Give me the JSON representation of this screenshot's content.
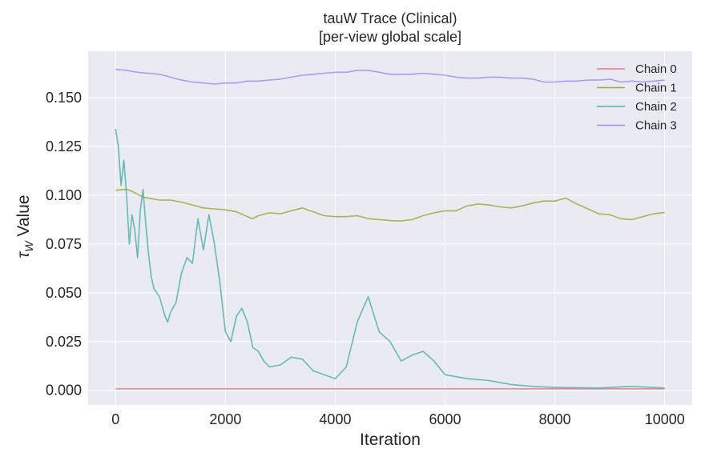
{
  "chart_data": {
    "type": "line",
    "title": "tauW Trace (Clinical)",
    "subtitle": "[per-view global scale]",
    "xlabel": "Iteration",
    "ylabel_symbol": "τ",
    "ylabel_subscript": "W",
    "ylabel_rest": " Value",
    "xlim": [
      -500,
      10500
    ],
    "ylim": [
      -0.0075,
      0.1738
    ],
    "xticks": [
      0,
      2000,
      4000,
      6000,
      8000,
      10000
    ],
    "xtick_labels": [
      "0",
      "2000",
      "4000",
      "6000",
      "8000",
      "10000"
    ],
    "yticks": [
      0.0,
      0.025,
      0.05,
      0.075,
      0.1,
      0.125,
      0.15
    ],
    "ytick_labels": [
      "0.000",
      "0.025",
      "0.050",
      "0.075",
      "0.100",
      "0.125",
      "0.150"
    ],
    "grid": true,
    "legend_position": "top-right",
    "background": "#eaeaf2",
    "series": [
      {
        "name": "Chain 0",
        "color": "#f77189",
        "points": [
          [
            0,
            0.0008
          ],
          [
            2000,
            0.0008
          ],
          [
            4000,
            0.0008
          ],
          [
            6000,
            0.0008
          ],
          [
            8000,
            0.0008
          ],
          [
            10000,
            0.0008
          ]
        ]
      },
      {
        "name": "Chain 1",
        "color": "#a0a83a",
        "points": [
          [
            0,
            0.1025
          ],
          [
            100,
            0.1028
          ],
          [
            200,
            0.103
          ],
          [
            300,
            0.102
          ],
          [
            400,
            0.1005
          ],
          [
            500,
            0.099
          ],
          [
            600,
            0.0985
          ],
          [
            800,
            0.0975
          ],
          [
            1000,
            0.0975
          ],
          [
            1200,
            0.0965
          ],
          [
            1400,
            0.095
          ],
          [
            1600,
            0.0935
          ],
          [
            1800,
            0.093
          ],
          [
            2000,
            0.0925
          ],
          [
            2200,
            0.0915
          ],
          [
            2400,
            0.089
          ],
          [
            2500,
            0.088
          ],
          [
            2600,
            0.0895
          ],
          [
            2800,
            0.091
          ],
          [
            3000,
            0.0905
          ],
          [
            3200,
            0.092
          ],
          [
            3400,
            0.0935
          ],
          [
            3600,
            0.0915
          ],
          [
            3800,
            0.0895
          ],
          [
            4000,
            0.089
          ],
          [
            4200,
            0.089
          ],
          [
            4400,
            0.0895
          ],
          [
            4600,
            0.088
          ],
          [
            4800,
            0.0875
          ],
          [
            5000,
            0.087
          ],
          [
            5200,
            0.0868
          ],
          [
            5400,
            0.0875
          ],
          [
            5600,
            0.0895
          ],
          [
            5800,
            0.091
          ],
          [
            6000,
            0.092
          ],
          [
            6200,
            0.092
          ],
          [
            6400,
            0.0945
          ],
          [
            6600,
            0.0955
          ],
          [
            6800,
            0.095
          ],
          [
            7000,
            0.094
          ],
          [
            7200,
            0.0935
          ],
          [
            7400,
            0.0945
          ],
          [
            7600,
            0.096
          ],
          [
            7800,
            0.097
          ],
          [
            8000,
            0.097
          ],
          [
            8200,
            0.0985
          ],
          [
            8400,
            0.0955
          ],
          [
            8600,
            0.093
          ],
          [
            8800,
            0.0905
          ],
          [
            9000,
            0.09
          ],
          [
            9200,
            0.088
          ],
          [
            9400,
            0.0875
          ],
          [
            9600,
            0.089
          ],
          [
            9800,
            0.0905
          ],
          [
            10000,
            0.0912
          ]
        ]
      },
      {
        "name": "Chain 2",
        "color": "#50b1a8",
        "points": [
          [
            0,
            0.134
          ],
          [
            50,
            0.125
          ],
          [
            100,
            0.105
          ],
          [
            150,
            0.118
          ],
          [
            200,
            0.1
          ],
          [
            250,
            0.075
          ],
          [
            300,
            0.09
          ],
          [
            350,
            0.082
          ],
          [
            400,
            0.068
          ],
          [
            450,
            0.092
          ],
          [
            500,
            0.103
          ],
          [
            550,
            0.085
          ],
          [
            600,
            0.07
          ],
          [
            650,
            0.058
          ],
          [
            700,
            0.052
          ],
          [
            800,
            0.048
          ],
          [
            900,
            0.038
          ],
          [
            950,
            0.035
          ],
          [
            1000,
            0.04
          ],
          [
            1100,
            0.045
          ],
          [
            1200,
            0.06
          ],
          [
            1300,
            0.068
          ],
          [
            1400,
            0.065
          ],
          [
            1500,
            0.088
          ],
          [
            1600,
            0.072
          ],
          [
            1700,
            0.09
          ],
          [
            1800,
            0.075
          ],
          [
            1900,
            0.055
          ],
          [
            2000,
            0.03
          ],
          [
            2100,
            0.025
          ],
          [
            2200,
            0.038
          ],
          [
            2300,
            0.042
          ],
          [
            2400,
            0.035
          ],
          [
            2500,
            0.022
          ],
          [
            2600,
            0.02
          ],
          [
            2700,
            0.015
          ],
          [
            2800,
            0.012
          ],
          [
            3000,
            0.013
          ],
          [
            3200,
            0.017
          ],
          [
            3400,
            0.016
          ],
          [
            3600,
            0.01
          ],
          [
            3800,
            0.008
          ],
          [
            4000,
            0.006
          ],
          [
            4200,
            0.012
          ],
          [
            4400,
            0.035
          ],
          [
            4600,
            0.048
          ],
          [
            4800,
            0.03
          ],
          [
            5000,
            0.025
          ],
          [
            5200,
            0.015
          ],
          [
            5400,
            0.018
          ],
          [
            5600,
            0.02
          ],
          [
            5800,
            0.015
          ],
          [
            6000,
            0.008
          ],
          [
            6400,
            0.006
          ],
          [
            6800,
            0.005
          ],
          [
            7200,
            0.003
          ],
          [
            7600,
            0.002
          ],
          [
            8000,
            0.0015
          ],
          [
            8800,
            0.0012
          ],
          [
            9400,
            0.002
          ],
          [
            10000,
            0.0012
          ]
        ]
      },
      {
        "name": "Chain 3",
        "color": "#a48cf4",
        "points": [
          [
            0,
            0.1645
          ],
          [
            200,
            0.164
          ],
          [
            400,
            0.163
          ],
          [
            600,
            0.1625
          ],
          [
            800,
            0.162
          ],
          [
            1000,
            0.1605
          ],
          [
            1200,
            0.159
          ],
          [
            1400,
            0.158
          ],
          [
            1600,
            0.1575
          ],
          [
            1800,
            0.157
          ],
          [
            2000,
            0.1575
          ],
          [
            2200,
            0.1575
          ],
          [
            2400,
            0.1585
          ],
          [
            2600,
            0.1585
          ],
          [
            2800,
            0.159
          ],
          [
            3000,
            0.1595
          ],
          [
            3200,
            0.1605
          ],
          [
            3400,
            0.1615
          ],
          [
            3600,
            0.162
          ],
          [
            3800,
            0.1625
          ],
          [
            4000,
            0.163
          ],
          [
            4200,
            0.163
          ],
          [
            4400,
            0.164
          ],
          [
            4600,
            0.164
          ],
          [
            4800,
            0.163
          ],
          [
            5000,
            0.162
          ],
          [
            5200,
            0.162
          ],
          [
            5400,
            0.162
          ],
          [
            5600,
            0.1625
          ],
          [
            5800,
            0.162
          ],
          [
            6000,
            0.1615
          ],
          [
            6200,
            0.1605
          ],
          [
            6400,
            0.16
          ],
          [
            6600,
            0.16
          ],
          [
            6800,
            0.1605
          ],
          [
            7000,
            0.1605
          ],
          [
            7200,
            0.16
          ],
          [
            7400,
            0.16
          ],
          [
            7600,
            0.1595
          ],
          [
            7800,
            0.158
          ],
          [
            8000,
            0.158
          ],
          [
            8200,
            0.1585
          ],
          [
            8400,
            0.1585
          ],
          [
            8600,
            0.159
          ],
          [
            8800,
            0.159
          ],
          [
            9000,
            0.1595
          ],
          [
            9200,
            0.158
          ],
          [
            9400,
            0.1585
          ],
          [
            9600,
            0.158
          ],
          [
            9800,
            0.1585
          ],
          [
            10000,
            0.159
          ]
        ]
      }
    ]
  }
}
